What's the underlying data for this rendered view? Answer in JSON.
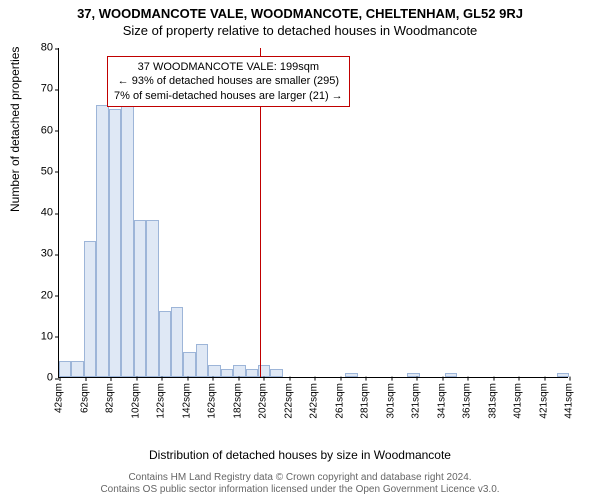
{
  "title": "37, WOODMANCOTE VALE, WOODMANCOTE, CHELTENHAM, GL52 9RJ",
  "subtitle": "Size of property relative to detached houses in Woodmancote",
  "y_axis_label": "Number of detached properties",
  "x_axis_label": "Distribution of detached houses by size in Woodmancote",
  "chart": {
    "type": "bar",
    "ylim": [
      0,
      80
    ],
    "y_ticks": [
      0,
      10,
      20,
      30,
      40,
      50,
      60,
      70,
      80
    ],
    "x_ticks": [
      "42sqm",
      "62sqm",
      "82sqm",
      "102sqm",
      "122sqm",
      "142sqm",
      "162sqm",
      "182sqm",
      "202sqm",
      "222sqm",
      "242sqm",
      "261sqm",
      "281sqm",
      "301sqm",
      "321sqm",
      "341sqm",
      "361sqm",
      "381sqm",
      "401sqm",
      "421sqm",
      "441sqm"
    ],
    "values": [
      4,
      4,
      33,
      66,
      65,
      66,
      38,
      38,
      16,
      17,
      6,
      8,
      3,
      2,
      3,
      2,
      3,
      2,
      0,
      0,
      0,
      0,
      0,
      1,
      0,
      0,
      0,
      0,
      1,
      0,
      0,
      1,
      0,
      0,
      0,
      0,
      0,
      0,
      0,
      0,
      1
    ],
    "bar_fill": "#dfe8f5",
    "bar_border": "#9db5d8",
    "marker_color": "#c00000",
    "marker_position": 0.395,
    "background_color": "#ffffff",
    "title_fontsize": 13,
    "label_fontsize": 12,
    "tick_fontsize": 11
  },
  "annotation": {
    "line1": "37 WOODMANCOTE VALE: 199sqm",
    "line2": "← 93% of detached houses are smaller (295)",
    "line3": "7% of semi-detached houses are larger (21) →"
  },
  "footer": {
    "line1": "Contains HM Land Registry data © Crown copyright and database right 2024.",
    "line2": "Contains OS public sector information licensed under the Open Government Licence v3.0."
  }
}
